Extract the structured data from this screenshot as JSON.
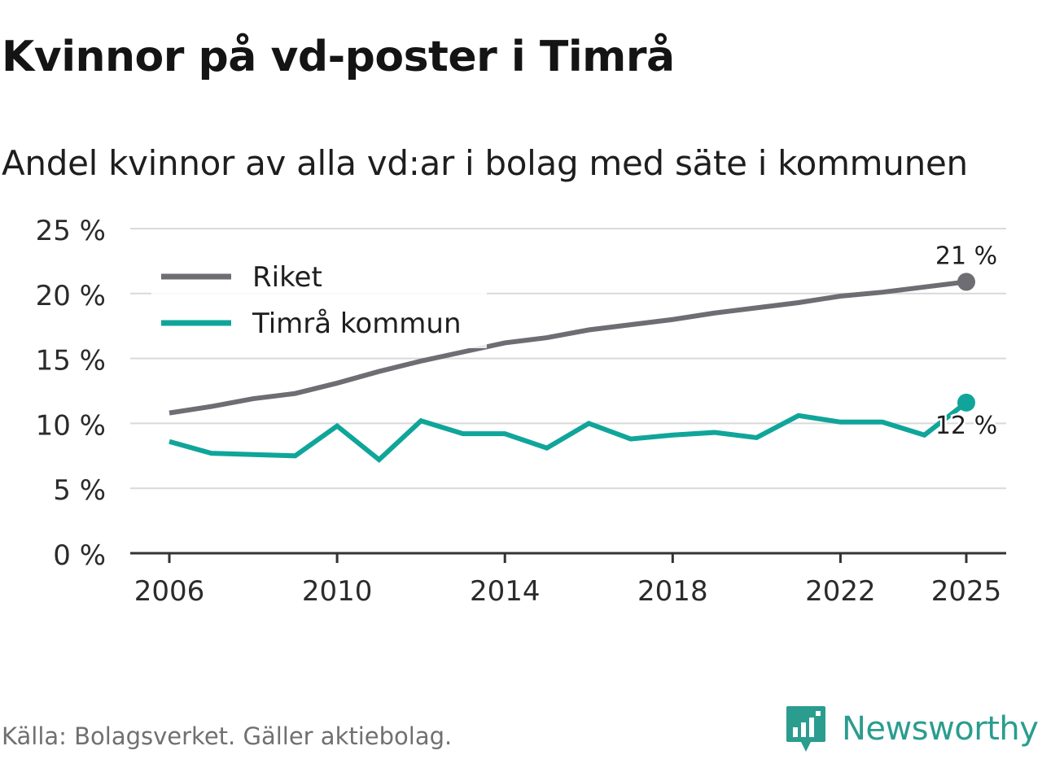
{
  "title": "Kvinnor på vd-poster i Timrå",
  "subtitle": "Andel kvinnor av alla vd:ar i bolag med säte i kommunen",
  "source": "Källa: Bolagsverket. Gäller aktiebolag.",
  "brand": {
    "name": "Newsworthy",
    "icon": "newsworthy-logo-icon",
    "color": "#2a9d8f"
  },
  "chart_data": {
    "type": "line",
    "title": "Kvinnor på vd-poster i Timrå",
    "subtitle": "Andel kvinnor av alla vd:ar i bolag med säte i kommunen",
    "xlabel": "",
    "ylabel": "",
    "x": [
      2006,
      2007,
      2008,
      2009,
      2010,
      2011,
      2012,
      2013,
      2014,
      2015,
      2016,
      2017,
      2018,
      2019,
      2020,
      2021,
      2022,
      2023,
      2024,
      2025
    ],
    "x_ticks": [
      2006,
      2010,
      2014,
      2018,
      2022,
      2025
    ],
    "x_tick_labels": [
      "2006",
      "2010",
      "2014",
      "2018",
      "2022",
      "2025"
    ],
    "ylim": [
      0,
      25
    ],
    "y_ticks": [
      0,
      5,
      10,
      15,
      20,
      25
    ],
    "y_tick_labels": [
      "0 %",
      "5 %",
      "10 %",
      "15 %",
      "20 %",
      "25 %"
    ],
    "grid": true,
    "legend_position": "top-left",
    "series": [
      {
        "name": "Riket",
        "color": "#6e6d73",
        "values": [
          10.8,
          11.3,
          11.9,
          12.3,
          13.1,
          14.0,
          14.8,
          15.5,
          16.2,
          16.6,
          17.2,
          17.6,
          18.0,
          18.5,
          18.9,
          19.3,
          19.8,
          20.1,
          20.5,
          20.9
        ],
        "end_label": "21 %"
      },
      {
        "name": "Timrå kommun",
        "color": "#10a59a",
        "values": [
          8.6,
          7.7,
          7.6,
          7.5,
          9.8,
          7.2,
          10.2,
          9.2,
          9.2,
          8.1,
          10.0,
          8.8,
          9.1,
          9.3,
          8.9,
          10.6,
          10.1,
          10.1,
          9.1,
          11.6
        ],
        "end_label": "12 %"
      }
    ]
  }
}
